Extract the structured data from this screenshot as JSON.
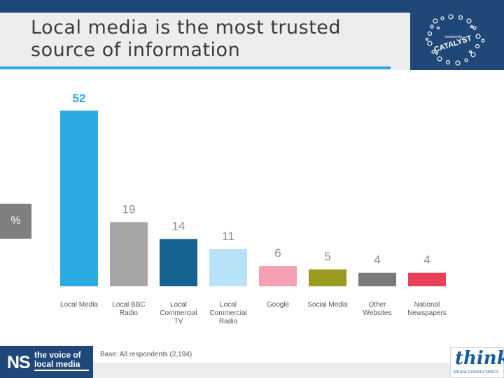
{
  "slide": {
    "title_line1": "Local media is the most trusted",
    "title_line2": "source of information",
    "percent_label": "%",
    "base_note": "Base: All respondents (2,194)",
    "accent_color": "#29abe2",
    "header_band_color": "#1f4777"
  },
  "logos": {
    "catalyst_word": "CATALYST",
    "catalyst_small": "newsworks",
    "ns_mark": "NS",
    "ns_line1": "the voice of",
    "ns_line2": "local media",
    "think_word": "think",
    "think_sub": "MEDIA CONSULTANCY"
  },
  "chart_data": {
    "type": "bar",
    "title": "",
    "xlabel": "",
    "ylabel": "%",
    "ylim": [
      0,
      52
    ],
    "grid": false,
    "categories": [
      [
        "Local Media"
      ],
      [
        "Local BBC",
        "Radio"
      ],
      [
        "Local",
        "Commercial",
        "TV"
      ],
      [
        "Local",
        "Commercial",
        "Radio"
      ],
      [
        "Google"
      ],
      [
        "Social Media"
      ],
      [
        "Other",
        "Websites"
      ],
      [
        "National",
        "Newspapers"
      ]
    ],
    "values": [
      52,
      19,
      14,
      11,
      6,
      5,
      4,
      4
    ],
    "colors": [
      "#29abe2",
      "#a6a6a6",
      "#13628f",
      "#b7e2f7",
      "#f4a2b1",
      "#9a9a1f",
      "#7a7a7a",
      "#e8415a"
    ],
    "label_colors": [
      "#29abe2",
      "#8f8f8f",
      "#8f8f8f",
      "#8f8f8f",
      "#8f8f8f",
      "#8f8f8f",
      "#8f8f8f",
      "#8f8f8f"
    ]
  }
}
